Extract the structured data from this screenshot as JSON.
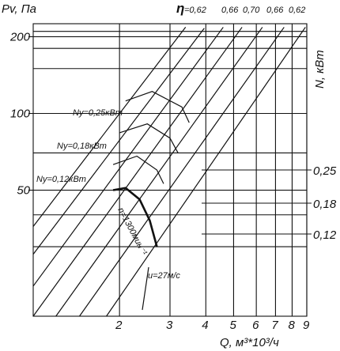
{
  "chart_data": {
    "type": "line",
    "y_axis": {
      "label": "Pv, Па",
      "ticks": [
        {
          "value": 50,
          "label": "50"
        },
        {
          "value": 100,
          "label": "100"
        },
        {
          "value": 200,
          "label": "200"
        }
      ]
    },
    "x_axis": {
      "label": "Q, м³*10³/ч",
      "ticks": [
        {
          "value": 2,
          "label": "2"
        },
        {
          "value": 3,
          "label": "3"
        },
        {
          "value": 4,
          "label": "4"
        },
        {
          "value": 5,
          "label": "5"
        },
        {
          "value": 6,
          "label": "6"
        },
        {
          "value": 7,
          "label": "7"
        },
        {
          "value": 8,
          "label": "8"
        },
        {
          "value": 9,
          "label": "9"
        }
      ]
    },
    "right_axis": {
      "label": "N, кВт",
      "ticks": [
        {
          "value": 0.25,
          "label": "0,25"
        },
        {
          "value": 0.18,
          "label": "0,18"
        },
        {
          "value": 0.12,
          "label": "0,12"
        }
      ]
    },
    "efficiency": {
      "symbol": "η",
      "values": [
        "=0,62",
        "0,66",
        "0,70",
        "0,66",
        "0,62"
      ]
    },
    "power_curves": [
      {
        "label": "Ny=0,25кВт",
        "points": [
          [
            2.1,
            112
          ],
          [
            2.6,
            122
          ],
          [
            3.3,
            106
          ],
          [
            3.5,
            92
          ]
        ]
      },
      {
        "label": "Ny=0,18кВт",
        "points": [
          [
            2.0,
            84
          ],
          [
            2.5,
            91
          ],
          [
            3.0,
            80
          ],
          [
            3.2,
            70
          ]
        ]
      },
      {
        "label": "Ny=0,12кВт",
        "points": [
          [
            1.9,
            63
          ],
          [
            2.3,
            68
          ],
          [
            2.7,
            60
          ],
          [
            2.85,
            53
          ]
        ]
      }
    ],
    "speed_curve": {
      "label": "n=1300мин⁻¹",
      "points": [
        [
          1.9,
          50
        ],
        [
          2.1,
          51
        ],
        [
          2.35,
          46
        ],
        [
          2.55,
          38
        ],
        [
          2.7,
          30
        ]
      ]
    },
    "velocity_label": "u=27м/с",
    "velocity_lines": [
      [
        [
          1.0,
          36
        ],
        [
          3.4,
          218
        ]
      ],
      [
        [
          1.0,
          28
        ],
        [
          3.95,
          216
        ]
      ],
      [
        [
          1.0,
          21
        ],
        [
          4.6,
          218
        ]
      ],
      [
        [
          1.0,
          16
        ],
        [
          5.35,
          218
        ]
      ],
      [
        [
          1.2,
          16
        ],
        [
          6.3,
          218
        ]
      ],
      [
        [
          1.45,
          16
        ],
        [
          7.5,
          218
        ]
      ],
      [
        [
          1.8,
          16
        ],
        [
          8.9,
          218
        ]
      ]
    ],
    "xlim": [
      1.0,
      9.0
    ],
    "ylim": [
      16,
      225
    ],
    "grid": true,
    "scale": "log-log"
  }
}
